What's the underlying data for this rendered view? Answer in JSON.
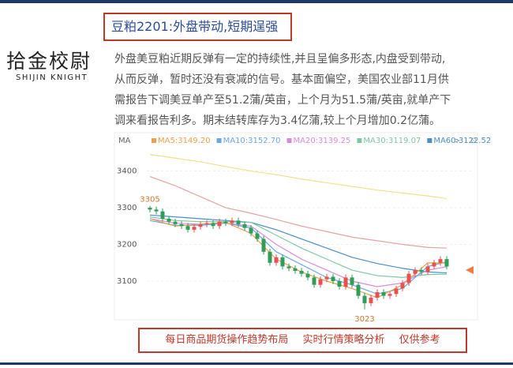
{
  "header": {
    "logo": "拾金校尉",
    "logo_en": "SHIJIN KNIGHT",
    "title": "豆粕2201:外盘带动,短期逞强"
  },
  "paragraph": [
    "外盘美豆粕近期反弹有一定的持续性,并且呈偏多形态,内盘受到带动,",
    "从而反弹，暂时还没有衰减的信号。基本面偏空，美国农业部11月供",
    "需报告下调美豆单产至51.2蒲/英亩，上个月为51.5蒲/英亩,就单产下",
    "调来看报告利多。期末结转库存为3.4亿蒲,较上个月增加0.2亿蒲。"
  ],
  "chart_data": {
    "type": "candlestick",
    "legend_label": "MA",
    "open": [
      3300,
      3295,
      3290,
      3270,
      3262,
      3255,
      3250,
      3240,
      3248,
      3255,
      3258,
      3250,
      3262,
      3258,
      3265,
      3255,
      3245,
      3230,
      3215,
      3180,
      3150,
      3165,
      3140,
      3135,
      3128,
      3120,
      3110,
      3090,
      3105,
      3112,
      3100,
      3085,
      3110,
      3090,
      3060,
      3040,
      3055,
      3070,
      3060,
      3065,
      3080,
      3095,
      3120,
      3130,
      3125,
      3140,
      3150,
      3160
    ],
    "high": [
      3305,
      3303,
      3298,
      3278,
      3270,
      3263,
      3258,
      3256,
      3263,
      3266,
      3266,
      3270,
      3270,
      3273,
      3273,
      3263,
      3253,
      3238,
      3223,
      3188,
      3173,
      3173,
      3148,
      3143,
      3136,
      3128,
      3118,
      3113,
      3120,
      3120,
      3108,
      3118,
      3118,
      3098,
      3068,
      3063,
      3078,
      3078,
      3073,
      3088,
      3103,
      3128,
      3138,
      3138,
      3148,
      3158,
      3168,
      3168
    ],
    "low": [
      3287,
      3282,
      3262,
      3254,
      3247,
      3242,
      3232,
      3232,
      3240,
      3247,
      3242,
      3242,
      3250,
      3250,
      3247,
      3237,
      3222,
      3207,
      3172,
      3142,
      3142,
      3132,
      3127,
      3120,
      3112,
      3102,
      3082,
      3082,
      3097,
      3092,
      3077,
      3077,
      3082,
      3052,
      3023,
      3032,
      3047,
      3052,
      3052,
      3057,
      3072,
      3087,
      3112,
      3117,
      3117,
      3132,
      3142,
      3132
    ],
    "close": [
      3295,
      3290,
      3270,
      3262,
      3255,
      3250,
      3240,
      3248,
      3255,
      3258,
      3250,
      3262,
      3258,
      3265,
      3255,
      3245,
      3230,
      3215,
      3180,
      3150,
      3165,
      3140,
      3135,
      3128,
      3120,
      3110,
      3090,
      3105,
      3112,
      3100,
      3085,
      3110,
      3090,
      3060,
      3040,
      3055,
      3070,
      3060,
      3065,
      3080,
      3095,
      3120,
      3130,
      3125,
      3140,
      3150,
      3160,
      3140
    ],
    "up_color": "#e8514f",
    "down_color": "#2f9e57",
    "lines": [
      {
        "color": "#f3e08a",
        "x": [
          0,
          4,
          8,
          12,
          16,
          20,
          24,
          28,
          32,
          36,
          40,
          44,
          47
        ],
        "values": [
          3445,
          3435,
          3425,
          3412,
          3400,
          3390,
          3378,
          3368,
          3358,
          3348,
          3340,
          3332,
          3325
        ]
      },
      {
        "color": "#e9a3a0",
        "x": [
          0,
          4,
          8,
          12,
          16,
          20,
          24,
          28,
          32,
          36,
          40,
          44,
          47
        ],
        "values": [
          3385,
          3360,
          3330,
          3300,
          3285,
          3268,
          3250,
          3235,
          3220,
          3210,
          3200,
          3192,
          3190
        ]
      },
      {
        "name": "MA60:3122.52",
        "color": "#4a90c8",
        "x": [
          0,
          4,
          8,
          12,
          16,
          20,
          24,
          28,
          32,
          36,
          40,
          44,
          47
        ],
        "values": [
          3280,
          3275,
          3270,
          3265,
          3260,
          3240,
          3215,
          3190,
          3165,
          3148,
          3135,
          3125,
          3122.52
        ]
      },
      {
        "name": "MA30:3119.07",
        "color": "#7dc9a4",
        "x": [
          0,
          4,
          8,
          12,
          16,
          20,
          24,
          28,
          32,
          36,
          40,
          44,
          47
        ],
        "values": [
          3275,
          3265,
          3262,
          3262,
          3260,
          3225,
          3190,
          3160,
          3130,
          3115,
          3110,
          3118,
          3119.07
        ]
      },
      {
        "name": "MA20:3139.25",
        "color": "#d98cd6",
        "x": [
          0,
          4,
          8,
          12,
          16,
          20,
          24,
          28,
          32,
          36,
          40,
          44,
          47
        ],
        "values": [
          3270,
          3258,
          3255,
          3258,
          3250,
          3200,
          3160,
          3130,
          3100,
          3085,
          3095,
          3130,
          3139.25
        ]
      },
      {
        "name": "MA10:3152.70",
        "color": "#6aa8e8",
        "x": [
          0,
          4,
          8,
          12,
          16,
          20,
          24,
          28,
          32,
          36,
          40,
          44,
          47
        ],
        "values": [
          3265,
          3252,
          3252,
          3258,
          3245,
          3180,
          3145,
          3110,
          3090,
          3065,
          3080,
          3140,
          3152.7
        ]
      },
      {
        "name": "MA5:3149.20",
        "color": "#f0a04b",
        "x": [
          0,
          4,
          8,
          12,
          16,
          20,
          24,
          28,
          32,
          36,
          40,
          44,
          47
        ],
        "values": [
          3270,
          3250,
          3255,
          3260,
          3230,
          3160,
          3125,
          3100,
          3080,
          3055,
          3090,
          3150,
          3149.2
        ]
      }
    ],
    "annotations": [
      {
        "text": "3305",
        "index": 0,
        "value": 3305
      },
      {
        "text": "3023",
        "index": 34,
        "value": 3023
      }
    ],
    "ylim": [
      3000,
      3470
    ],
    "yticks": [
      3100,
      3200,
      3300,
      3400
    ],
    "grid": true
  },
  "footer": "每日商品期货操作趋势布局 实时行情策略分析 仅供参考"
}
